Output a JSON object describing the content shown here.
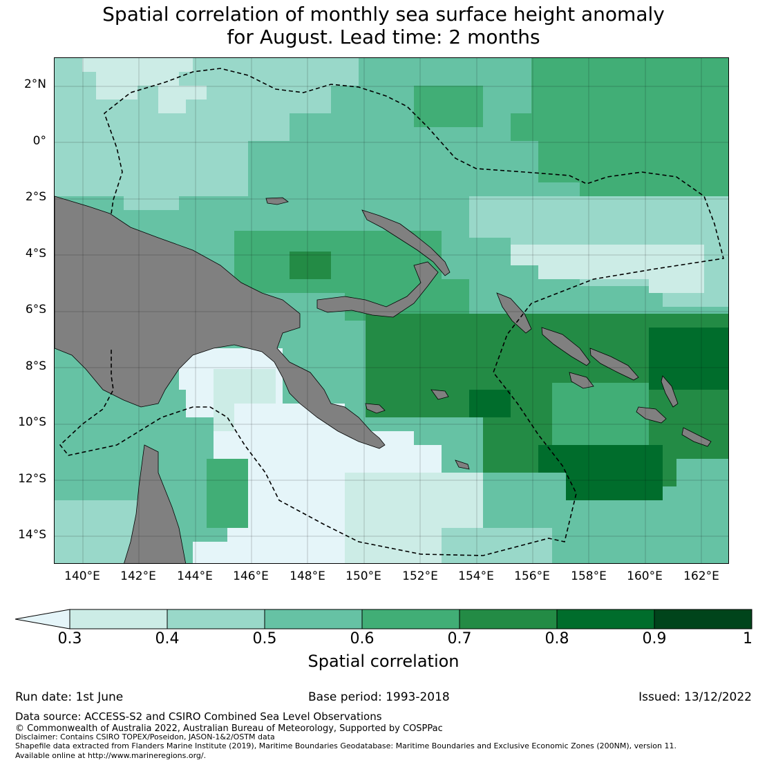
{
  "title_line1": "Spatial correlation of monthly sea surface height anomaly",
  "title_line2": "for August. Lead time: 2 months",
  "map": {
    "lon_range": [
      139,
      163
    ],
    "lat_range": [
      -15,
      3
    ],
    "lat_labels": [
      "2°N",
      "0°",
      "2°S",
      "4°S",
      "6°S",
      "8°S",
      "10°S",
      "12°S",
      "14°S"
    ],
    "lon_labels": [
      "140°E",
      "142°E",
      "144°E",
      "146°E",
      "148°E",
      "150°E",
      "152°E",
      "154°E",
      "156°E",
      "158°E",
      "160°E",
      "162°E"
    ],
    "land_color": "#808080",
    "boundary_style": "dashed"
  },
  "colorbar": {
    "label": "Spatial correlation",
    "ticks": [
      "0.3",
      "0.4",
      "0.5",
      "0.6",
      "0.7",
      "0.8",
      "0.9",
      "1"
    ],
    "colors": [
      "#e5f5f9",
      "#ccece6",
      "#99d8c9",
      "#66c2a4",
      "#41ae76",
      "#238b45",
      "#006d2c",
      "#00441b"
    ],
    "extend": "min"
  },
  "footer": {
    "run_date": "Run date: 1st June",
    "base_period": "Base period: 1993-2018",
    "issued": "Issued: 13/12/2022",
    "data_source": "Data source: ACCESS-S2 and CSIRO Combined Sea Level Observations",
    "copyright": "© Commonwealth of Australia 2022, Australian Bureau of Meteorology, Supported by COSPPac",
    "disclaimer": "Disclaimer: Contains CSIRO TOPEX/Poseidon, JASON-1&2/OSTM data",
    "shapefile": "Shapefile data extracted from Flanders Marine Institute (2019), Maritime Boundaries Geodatabase: Maritime Boundaries and Exclusive Economic Zones (200NM), version 11.",
    "available": "Available online at http://www.marineregions.org/."
  }
}
